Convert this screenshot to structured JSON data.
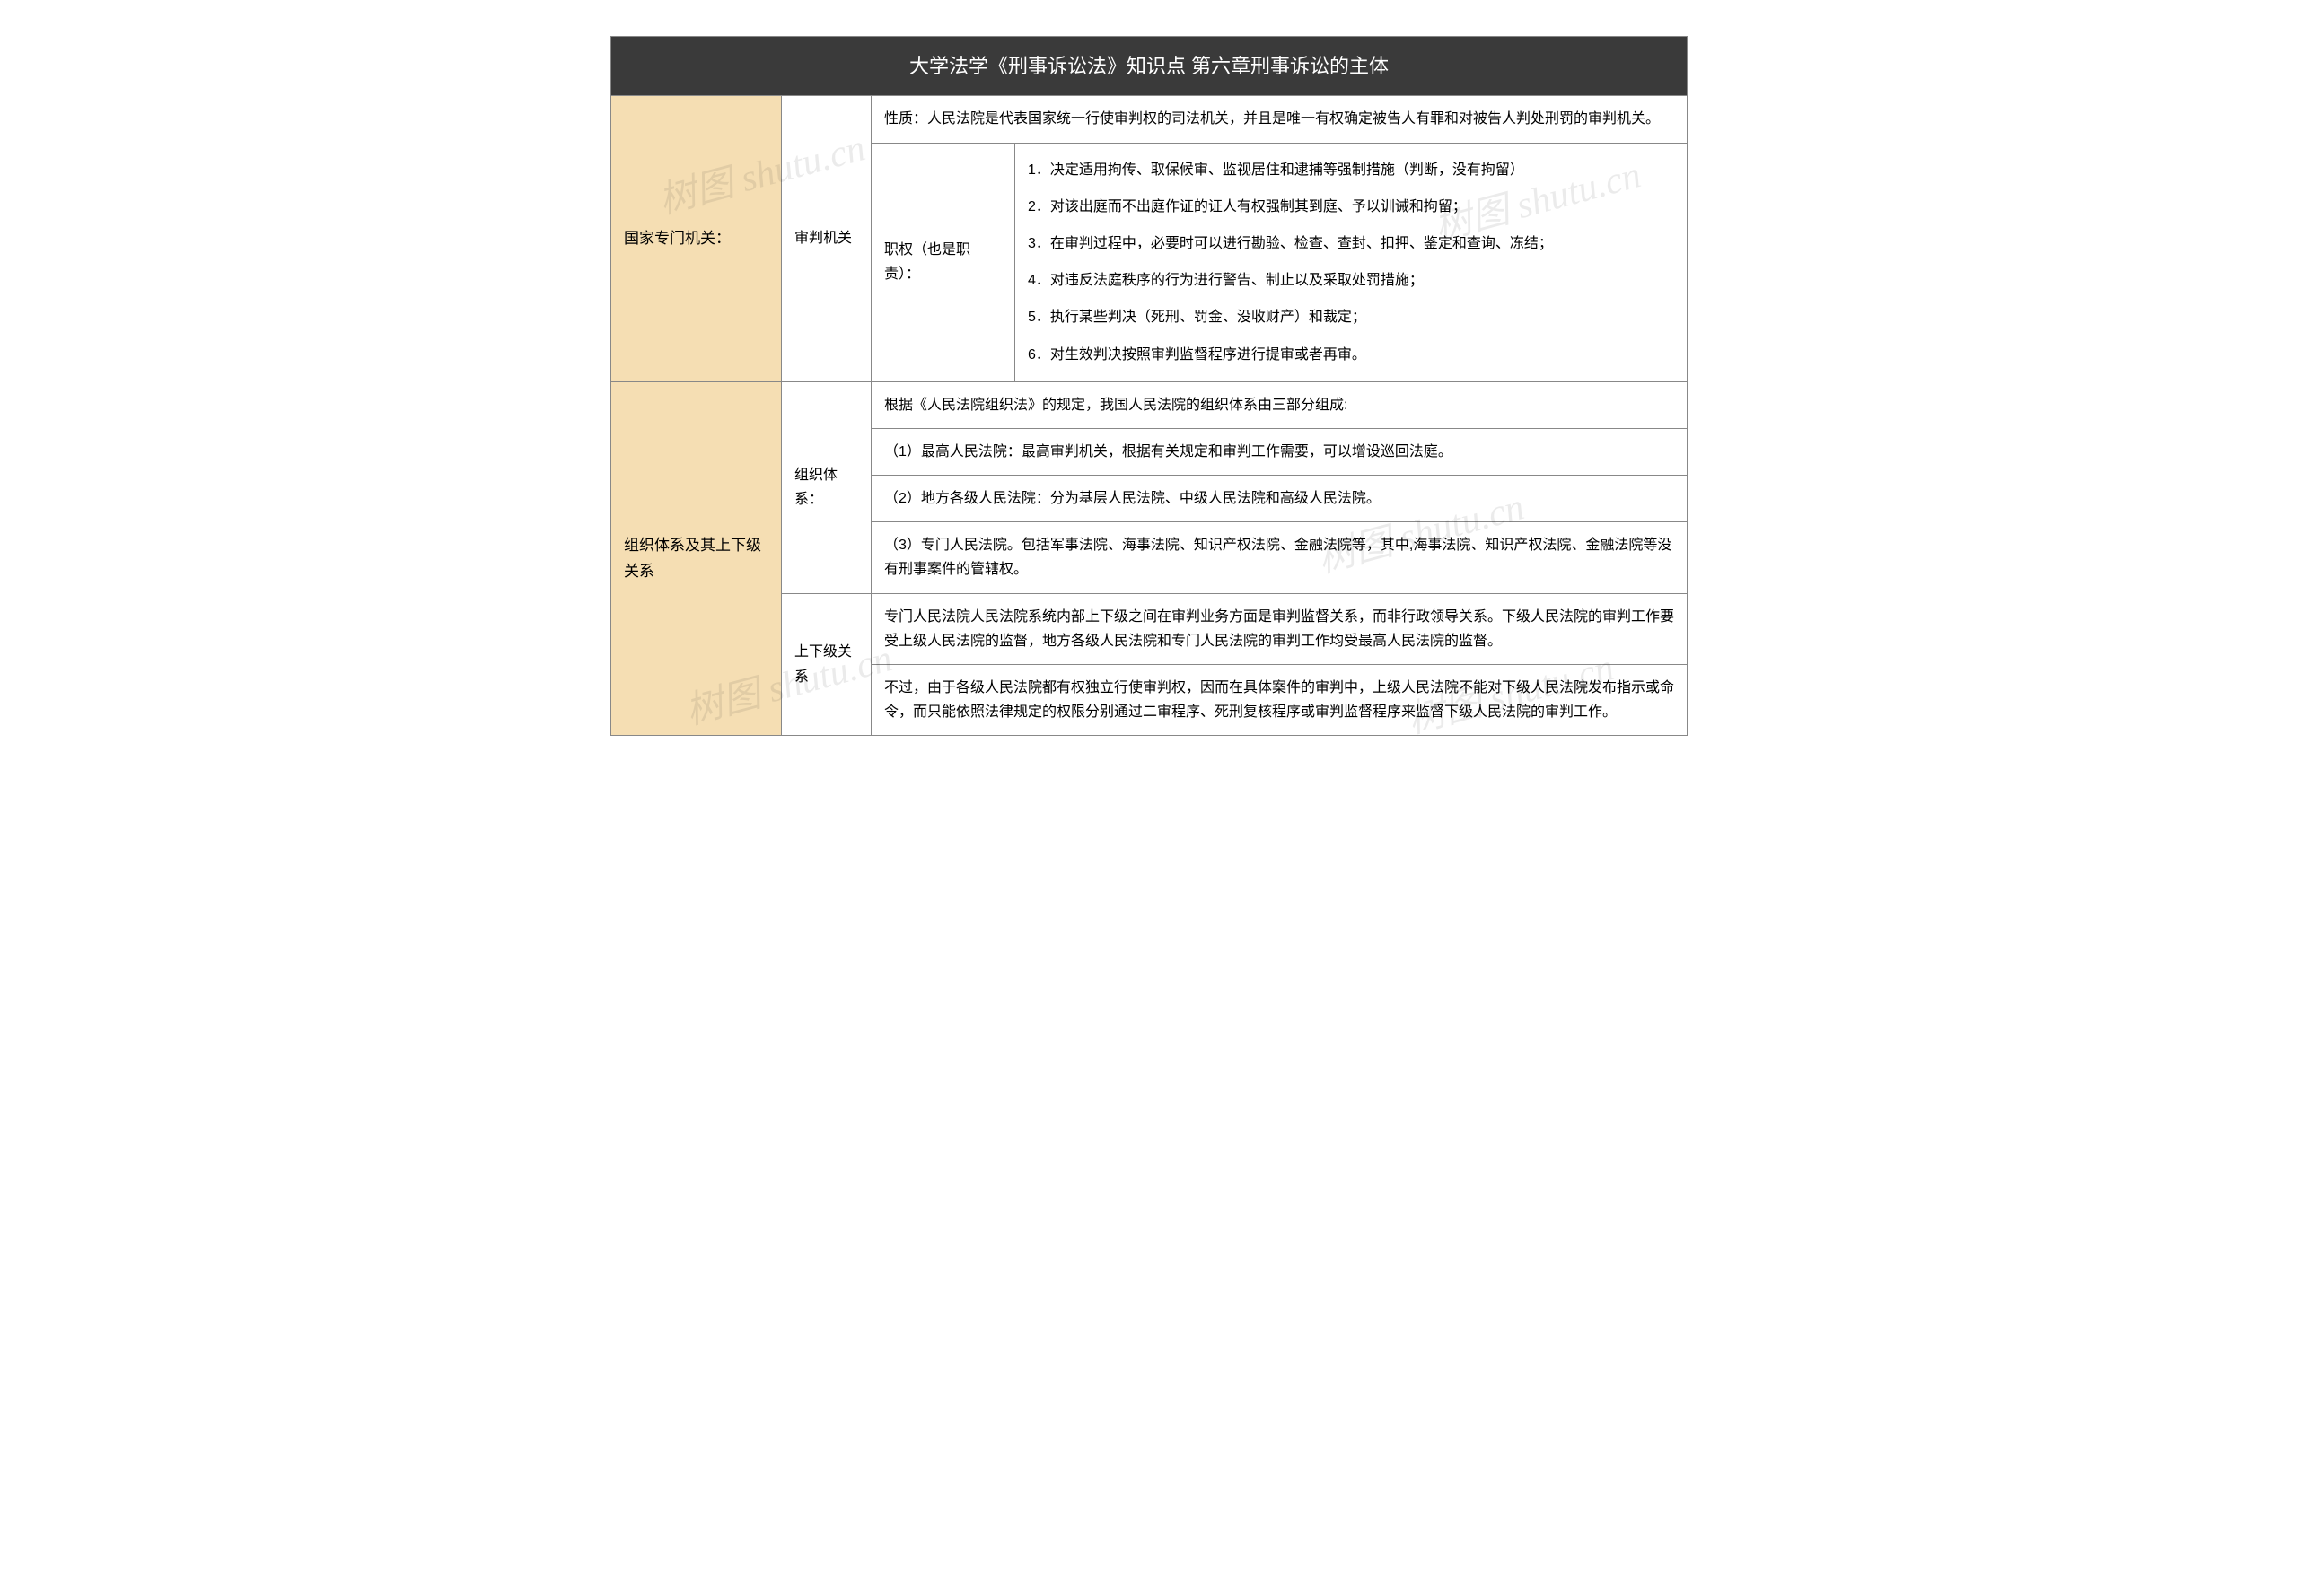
{
  "watermark_text": "树图 shutu.cn",
  "colors": {
    "header_bg": "#3a3a3a",
    "header_text": "#ffffff",
    "category_bg": "#f5deb3",
    "border": "#888888",
    "content_bg": "#ffffff"
  },
  "title": "大学法学《刑事诉讼法》知识点 第六章刑事诉讼的主体",
  "section1": {
    "category": "国家专门机关：",
    "sub": "审判机关",
    "row1": "性质：人民法院是代表国家统一行使审判权的司法机关，并且是唯一有权确定被告人有罪和对被告人判处刑罚的审判机关。",
    "row2_label": "职权（也是职责）：",
    "row2_items": {
      "i1": "1．决定适用拘传、取保候审、监视居住和逮捕等强制措施（判断，没有拘留）",
      "i2": "2．对该出庭而不出庭作证的证人有权强制其到庭、予以训诫和拘留；",
      "i3": "3．在审判过程中，必要时可以进行勘验、检查、查封、扣押、鉴定和查询、冻结；",
      "i4": "4．对违反法庭秩序的行为进行警告、制止以及采取处罚措施；",
      "i5": "5．执行某些判决（死刑、罚金、没收财产）和裁定；",
      "i6": "6．对生效判决按照审判监督程序进行提审或者再审。"
    }
  },
  "section2": {
    "category": "组织体系及其上下级关系",
    "sub1": "组织体系：",
    "sub1_row1": "根据《人民法院组织法》的规定，我国人民法院的组织体系由三部分组成:",
    "sub1_row2": "（1）最高人民法院：最高审判机关，根据有关规定和审判工作需要，可以增设巡回法庭。",
    "sub1_row3": "（2）地方各级人民法院：分为基层人民法院、中级人民法院和高级人民法院。",
    "sub1_row4": "（3）专门人民法院。包括军事法院、海事法院、知识产权法院、金融法院等，其中,海事法院、知识产权法院、金融法院等没有刑事案件的管辖权。",
    "sub2": "上下级关系",
    "sub2_row1": "专门人民法院人民法院系统内部上下级之间在审判业务方面是审判监督关系，而非行政领导关系。下级人民法院的审判工作要受上级人民法院的监督，地方各级人民法院和专门人民法院的审判工作均受最高人民法院的监督。",
    "sub2_row2": "不过，由于各级人民法院都有权独立行使审判权，因而在具体案件的审判中，上级人民法院不能对下级人民法院发布指示或命令，而只能依照法律规定的权限分别通过二审程序、死刑复核程序或审判监督程序来监督下级人民法院的审判工作。"
  }
}
